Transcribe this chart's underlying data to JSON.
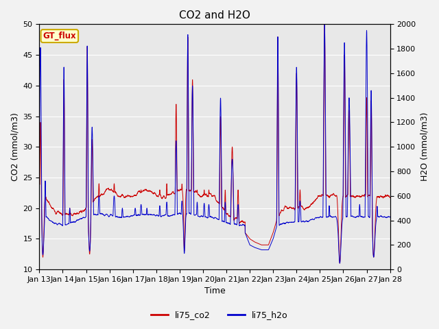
{
  "title": "CO2 and H2O",
  "xlabel": "Time",
  "ylabel_left": "CO2 (mmol/m3)",
  "ylabel_right": "H2O (mmol/m3)",
  "ylim_left": [
    10,
    50
  ],
  "ylim_right": [
    0,
    2000
  ],
  "yticks_left": [
    10,
    15,
    20,
    25,
    30,
    35,
    40,
    45,
    50
  ],
  "yticks_right": [
    0,
    200,
    400,
    600,
    800,
    1000,
    1200,
    1400,
    1600,
    1800,
    2000
  ],
  "xtick_labels": [
    "Jan 13",
    "Jan 14",
    "Jan 15",
    "Jan 16",
    "Jan 17",
    "Jan 18",
    "Jan 19",
    "Jan 20",
    "Jan 21",
    "Jan 22",
    "Jan 23",
    "Jan 24",
    "Jan 25",
    "Jan 26",
    "Jan 27",
    "Jan 28"
  ],
  "co2_color": "#cc0000",
  "h2o_color": "#0000cc",
  "legend_label_co2": "li75_co2",
  "legend_label_h2o": "li75_h2o",
  "gt_flux_label": "GT_flux",
  "gt_flux_bg": "#ffffcc",
  "gt_flux_border": "#ccaa00",
  "gt_flux_text_color": "#cc0000",
  "plot_bg": "#e8e8e8",
  "grid_color": "#ffffff",
  "fig_bg": "#f2f2f2",
  "title_fontsize": 11,
  "axis_fontsize": 9,
  "tick_fontsize": 8
}
